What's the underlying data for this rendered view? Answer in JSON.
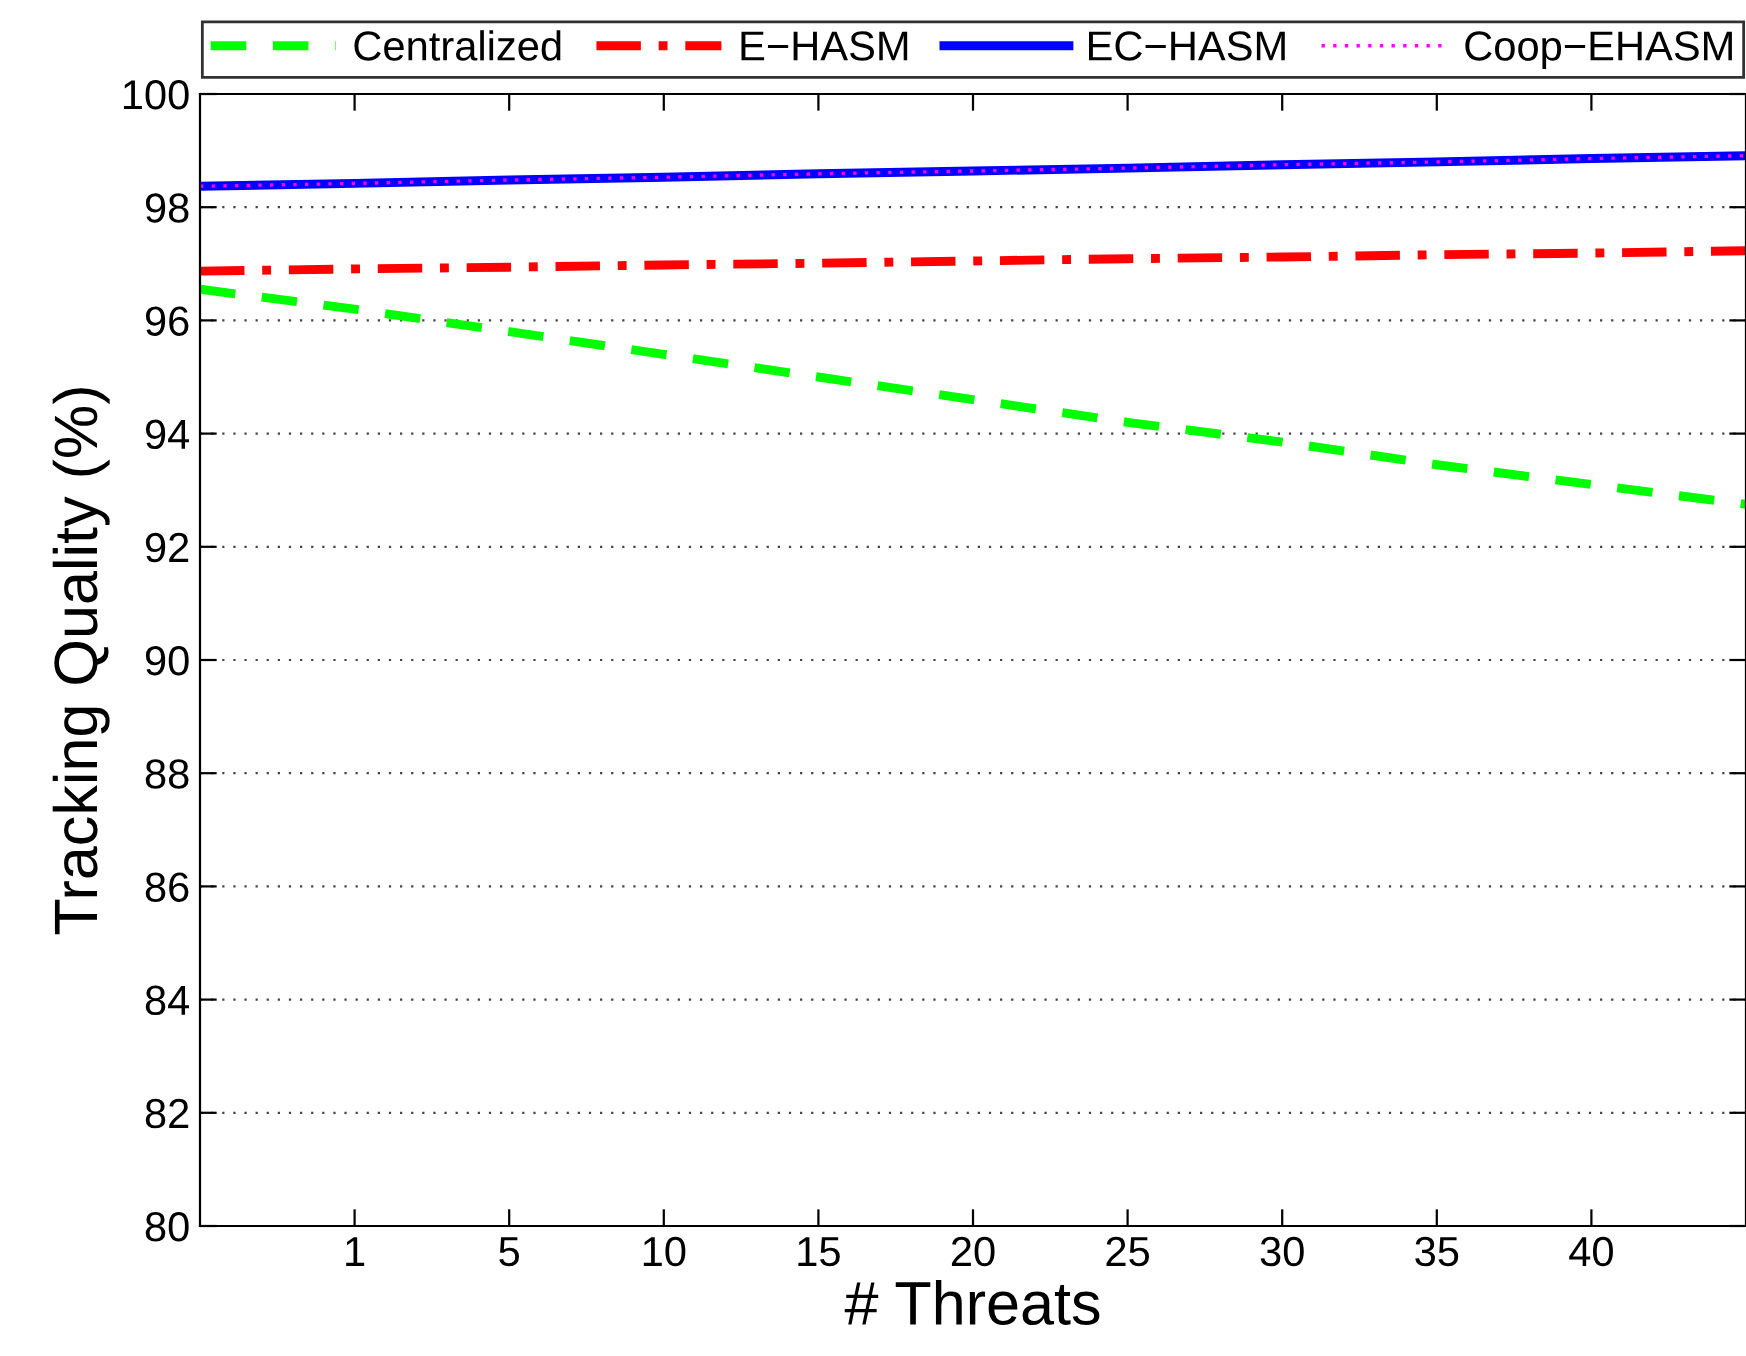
{
  "chart_data": {
    "type": "line",
    "xlabel": "# Threats",
    "ylabel": "Tracking Quality (%)",
    "categories": [
      null,
      "1",
      "5",
      "10",
      "15",
      "20",
      "25",
      "30",
      "35",
      "40",
      null
    ],
    "ylim": [
      80,
      100
    ],
    "yticks": [
      80,
      82,
      84,
      86,
      88,
      90,
      92,
      94,
      96,
      98,
      100
    ],
    "grid": "y",
    "legend": "top",
    "marker": "none",
    "series": [
      {
        "name": "Centralized",
        "color": "#00ff00",
        "line_style": "dashed",
        "values": [
          96.55,
          96.2,
          95.8,
          95.4,
          95.0,
          94.6,
          94.2,
          93.85,
          93.45,
          93.1,
          92.75
        ]
      },
      {
        "name": "E−HASM",
        "color": "#ff0000",
        "line_style": "dashdot",
        "values": [
          96.87,
          96.91,
          96.94,
          96.98,
          97.01,
          97.05,
          97.09,
          97.12,
          97.16,
          97.19,
          97.23
        ]
      },
      {
        "name": "EC−HASM",
        "color": "#0000ff",
        "line_style": "solid",
        "values": [
          98.37,
          98.42,
          98.48,
          98.53,
          98.59,
          98.64,
          98.69,
          98.75,
          98.8,
          98.86,
          98.91
        ]
      },
      {
        "name": "Coop−EHASM",
        "color": "#ff00ff",
        "line_style": "dotted",
        "values": [
          98.37,
          98.42,
          98.48,
          98.53,
          98.59,
          98.64,
          98.69,
          98.75,
          98.8,
          98.86,
          98.91
        ]
      }
    ]
  }
}
